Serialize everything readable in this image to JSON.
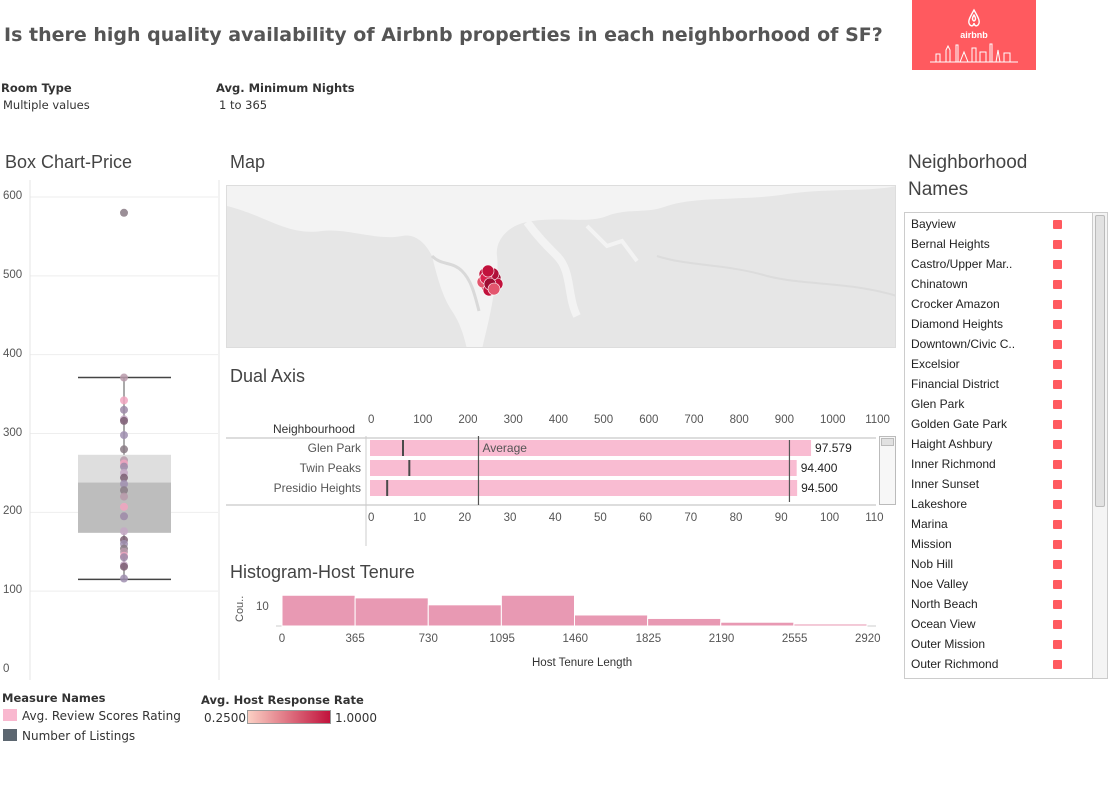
{
  "page": {
    "title": "Is there high quality availability of Airbnb properties in each neighborhood of SF?"
  },
  "logo": {
    "text": "airbnb",
    "color": "#ff5a5f"
  },
  "filters": [
    {
      "title": "Room Type",
      "value": "Multiple values"
    },
    {
      "title": "Avg. Minimum Nights",
      "value": "1 to 365"
    }
  ],
  "box_chart": {
    "title": "Box Chart-Price",
    "y_ticks": [
      "600",
      "500",
      "400",
      "300",
      "200",
      "100",
      "0"
    ]
  },
  "map": {
    "title": "Map"
  },
  "dual_axis": {
    "title": "Dual Axis",
    "row_header": "Neighbourhood",
    "top_ticks": [
      "0",
      "100",
      "200",
      "300",
      "400",
      "500",
      "600",
      "700",
      "800",
      "900",
      "1000",
      "1100"
    ],
    "bottom_ticks": [
      "0",
      "10",
      "20",
      "30",
      "40",
      "50",
      "60",
      "70",
      "80",
      "90",
      "100",
      "110"
    ],
    "reference_label": "Average",
    "rows": [
      {
        "name": "Glen Park",
        "value_label": "97.579"
      },
      {
        "name": "Twin Peaks",
        "value_label": "94.400"
      },
      {
        "name": "Presidio Heights",
        "value_label": "94.500"
      }
    ]
  },
  "histogram": {
    "title": "Histogram-Host Tenure",
    "y_label": "Cou..",
    "y_tick": "10",
    "x_label": "Host Tenure Length",
    "x_ticks": [
      "0",
      "365",
      "730",
      "1095",
      "1460",
      "1825",
      "2190",
      "2555",
      "2920"
    ]
  },
  "neighborhoods": {
    "title_line1": "Neighborhood",
    "title_line2": "Names",
    "items": [
      "Bayview",
      "Bernal Heights",
      "Castro/Upper Mar..",
      "Chinatown",
      "Crocker Amazon",
      "Diamond Heights",
      "Downtown/Civic C..",
      "Excelsior",
      "Financial District",
      "Glen Park",
      "Golden Gate Park",
      "Haight Ashbury",
      "Inner Richmond",
      "Inner Sunset",
      "Lakeshore",
      "Marina",
      "Mission",
      "Nob Hill",
      "Noe Valley",
      "North Beach",
      "Ocean View",
      "Outer Mission",
      "Outer Richmond"
    ]
  },
  "legend_measures": {
    "title": "Measure Names",
    "items": [
      {
        "label": "Avg. Review Scores Rating",
        "color": "#f9b8cf"
      },
      {
        "label": "Number of Listings",
        "color": "#5c6670"
      }
    ]
  },
  "legend_response": {
    "title": "Avg. Host Response Rate",
    "min": "0.2500",
    "max": "1.0000",
    "color_low": "#fbd0c4",
    "color_high": "#c1123c"
  },
  "chart_data": [
    {
      "type": "box",
      "title": "Box Chart-Price",
      "ylim": [
        0,
        620
      ],
      "whisker_low": 115,
      "q1": 174,
      "median": 238,
      "q3": 273,
      "whisker_high": 371,
      "points": [
        580,
        371,
        342,
        330,
        318,
        316,
        298,
        280,
        266,
        262,
        258,
        250,
        244,
        236,
        228,
        220,
        207,
        195,
        176,
        165,
        160,
        154,
        150,
        145,
        143,
        133,
        131,
        116
      ]
    },
    {
      "type": "bar",
      "title": "Dual Axis",
      "categories": [
        "Glen Park",
        "Twin Peaks",
        "Presidio Heights"
      ],
      "series": [
        {
          "name": "Avg. Review Scores Rating",
          "values": [
            97.579,
            94.4,
            94.5
          ]
        },
        {
          "name": "Number of Listings",
          "values": [
            73,
            87,
            38
          ]
        }
      ],
      "reference_line": {
        "label": "Average",
        "value": 24
      },
      "top_axis_range": [
        0,
        1150
      ],
      "bottom_axis_range": [
        0,
        115
      ]
    },
    {
      "type": "bar",
      "title": "Histogram-Host Tenure",
      "xlabel": "Host Tenure Length",
      "ylabel": "Cou..",
      "bin_edges": [
        0,
        365,
        730,
        1095,
        1460,
        1825,
        2190,
        2555,
        2920
      ],
      "values": [
        10.6,
        9.7,
        7.3,
        10.6,
        3.8,
        2.6,
        1.3,
        0.7
      ],
      "ylim": [
        0,
        11
      ]
    }
  ]
}
